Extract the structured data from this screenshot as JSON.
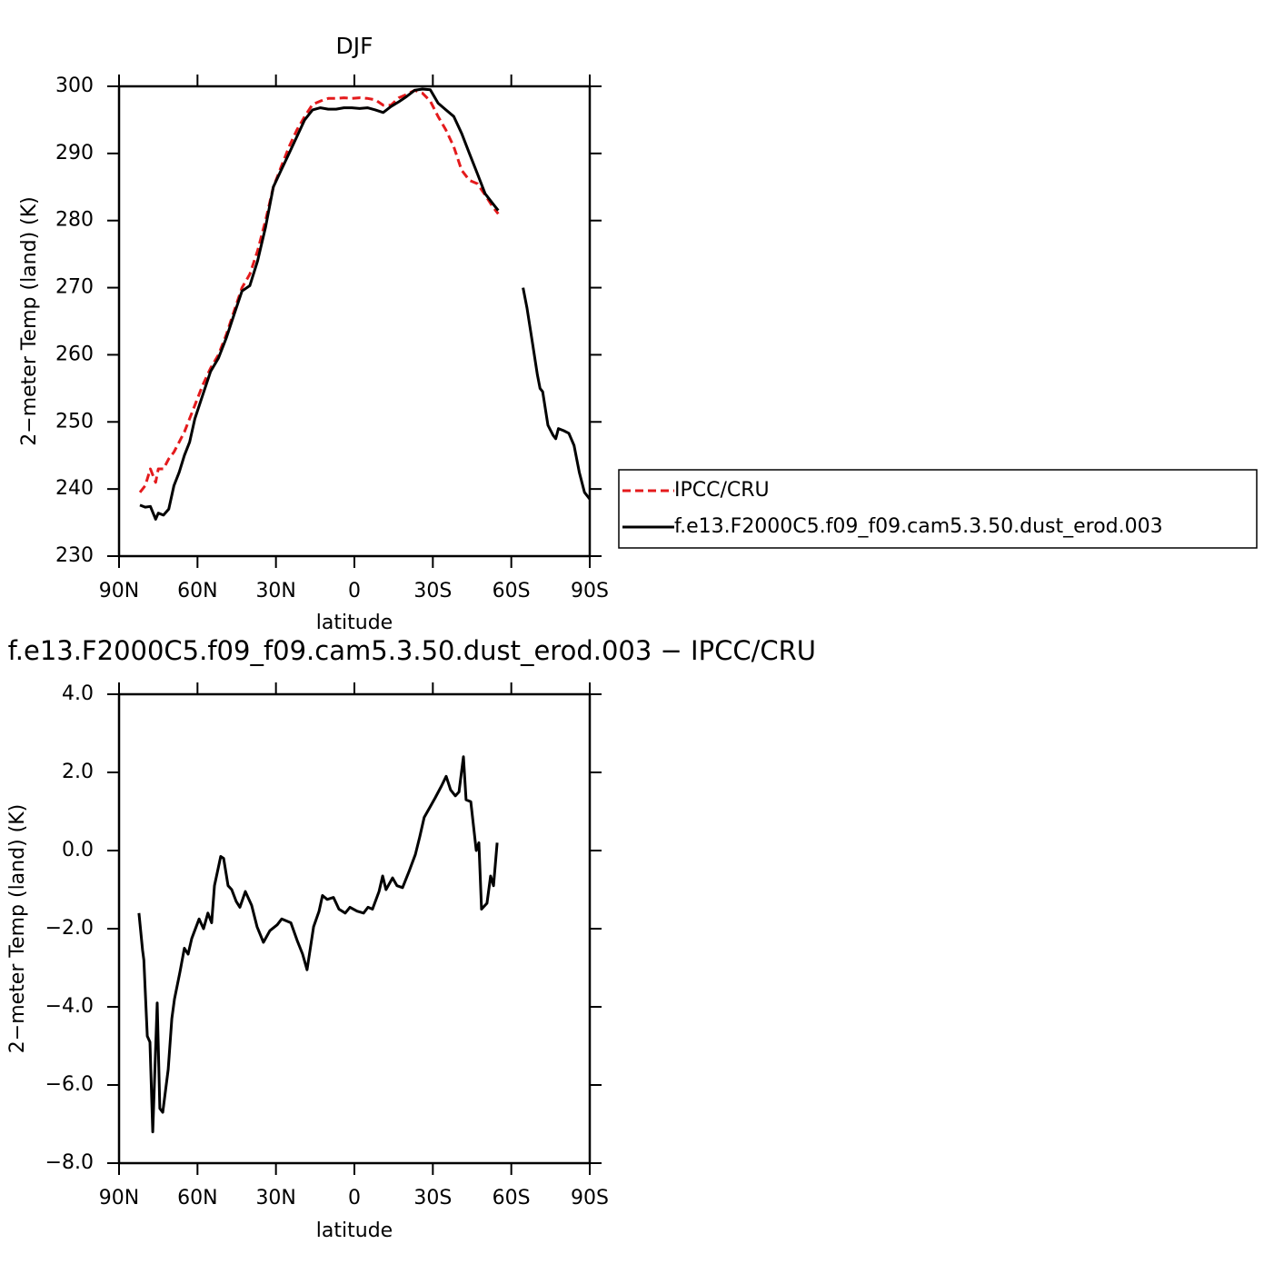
{
  "chart_data": [
    {
      "type": "line",
      "title": "DJF",
      "xlabel": "latitude",
      "ylabel": "2−meter Temp (land) (K)",
      "xlim": [
        90,
        -90
      ],
      "xticks": [
        {
          "value": 90,
          "label": "90N"
        },
        {
          "value": 60,
          "label": "60N"
        },
        {
          "value": 30,
          "label": "30N"
        },
        0,
        {
          "value": -30,
          "label": "30S"
        },
        {
          "value": -60,
          "label": "60S"
        },
        {
          "value": -90,
          "label": "90S"
        }
      ],
      "ylim": [
        230,
        300
      ],
      "yticks": [
        230,
        240,
        250,
        260,
        270,
        280,
        290,
        300
      ],
      "legend": "right",
      "x": [
        82,
        80,
        78,
        76,
        75,
        73,
        71,
        69,
        67,
        65,
        63,
        61,
        58,
        55,
        52,
        49,
        46,
        43,
        40,
        37,
        34,
        31,
        28,
        25,
        22,
        19,
        16,
        13,
        10,
        7,
        4,
        1,
        -2,
        -5,
        -8,
        -11,
        -14,
        -17,
        -20,
        -23,
        -26,
        -29,
        -32,
        -35,
        -38,
        -41,
        -44,
        -47,
        -50,
        -53,
        -55,
        -60,
        -64.5,
        -66,
        -68,
        -70,
        -71,
        -72,
        -74,
        -76,
        -77,
        -78,
        -80,
        -82,
        -84,
        -86,
        -88,
        -90
      ],
      "series": [
        {
          "name": "IPCC/CRU",
          "color": "#e41a1c",
          "dash": "dashed",
          "values": [
            239.5,
            240.5,
            243,
            241,
            243,
            243,
            244.5,
            245.5,
            247,
            248.5,
            250.5,
            252.5,
            255.5,
            258,
            260,
            263,
            266.5,
            270,
            272,
            275.5,
            280,
            285,
            288,
            291,
            293.5,
            295.5,
            297.3,
            297.8,
            298.2,
            298.2,
            298.3,
            298.2,
            298.3,
            298.2,
            298,
            297.2,
            297.2,
            298.3,
            298.8,
            299.4,
            299,
            297.8,
            295.5,
            293.5,
            291,
            287.5,
            286,
            285.5,
            283.8,
            282,
            281,
            null,
            null,
            null,
            null,
            null,
            null,
            null,
            null,
            null,
            null,
            null,
            null,
            null,
            null,
            null,
            null,
            null
          ]
        },
        {
          "name": "f.e13.F2000C5.f09_f09.cam5.3.50.dust_erod.003",
          "color": "#000000",
          "dash": "solid",
          "values": [
            237.6,
            237.3,
            237.4,
            235.5,
            236.4,
            236.1,
            237,
            240.5,
            242.5,
            245,
            247,
            250.5,
            254,
            257.5,
            259.5,
            262.5,
            266,
            269.5,
            270.3,
            274,
            279,
            285,
            287.5,
            290,
            292.5,
            295,
            296.5,
            296.8,
            296.6,
            296.6,
            296.8,
            296.8,
            296.7,
            296.8,
            296.5,
            296.1,
            297,
            297.7,
            298.5,
            299.4,
            299.6,
            299.5,
            297.5,
            296.5,
            295.5,
            293,
            290,
            287,
            284,
            282.5,
            281.5,
            null,
            270,
            267,
            262,
            257,
            255,
            254.5,
            249.5,
            248,
            247.5,
            249,
            248.7,
            248.3,
            246.5,
            242.5,
            239.5,
            238.5
          ]
        }
      ]
    },
    {
      "type": "line",
      "title": "f.e13.F2000C5.f09_f09.cam5.3.50.dust_erod.003 − IPCC/CRU",
      "xlabel": "latitude",
      "ylabel": "2−meter Temp (land) (K)",
      "xlim": [
        90,
        -90
      ],
      "xticks": [
        {
          "value": 90,
          "label": "90N"
        },
        {
          "value": 60,
          "label": "60N"
        },
        {
          "value": 30,
          "label": "30N"
        },
        0,
        {
          "value": -30,
          "label": "30S"
        },
        {
          "value": -60,
          "label": "60S"
        },
        {
          "value": -90,
          "label": "90S"
        }
      ],
      "ylim": [
        -8,
        4
      ],
      "yticks": [
        {
          "value": -8,
          "label": "−8.0"
        },
        {
          "value": -6,
          "label": "−6.0"
        },
        {
          "value": -4,
          "label": "−4.0"
        },
        {
          "value": -2,
          "label": "−2.0"
        },
        {
          "value": 0,
          "label": "0.0"
        },
        {
          "value": 2,
          "label": "2.0"
        },
        {
          "value": 4,
          "label": "4.0"
        }
      ],
      "color": "#000000",
      "x": [
        82.4,
        81,
        80.5,
        79.2,
        78.2,
        77.1,
        75.4,
        74.4,
        73.3,
        71.2,
        69.8,
        68.8,
        66.7,
        65,
        63.6,
        62.2,
        59.4,
        57.7,
        56,
        54.6,
        53.5,
        51.1,
        50,
        48.3,
        46.9,
        45.2,
        43.8,
        41.7,
        39.3,
        37.2,
        34.8,
        32.3,
        29.5,
        27.8,
        24.3,
        21.9,
        19.8,
        18.1,
        15.6,
        13.5,
        12.2,
        10.4,
        8,
        5.9,
        3.5,
        1.7,
        -1,
        -3.5,
        -5.2,
        -6.9,
        -9.4,
        -10.8,
        -12.1,
        -14.6,
        -16.3,
        -18.4,
        -20.8,
        -23.3,
        -25,
        -26.7,
        -28.8,
        -30.9,
        -33.3,
        -35.1,
        -36.8,
        -38.6,
        -40,
        -41.7,
        -42.7,
        -44.5,
        -46.6,
        -47.6,
        -48.6,
        -50.7,
        -52.1,
        -53.2,
        -54.6
      ],
      "values": [
        -1.6,
        -2.55,
        -2.8,
        -4.75,
        -4.9,
        -7.2,
        -3.9,
        -6.6,
        -6.7,
        -5.6,
        -4.3,
        -3.8,
        -3.1,
        -2.5,
        -2.65,
        -2.25,
        -1.75,
        -2.0,
        -1.6,
        -1.85,
        -0.9,
        -0.15,
        -0.2,
        -0.9,
        -1.0,
        -1.3,
        -1.45,
        -1.05,
        -1.4,
        -1.95,
        -2.35,
        -2.05,
        -1.9,
        -1.75,
        -1.85,
        -2.3,
        -2.65,
        -3.05,
        -1.95,
        -1.55,
        -1.15,
        -1.25,
        -1.2,
        -1.5,
        -1.6,
        -1.45,
        -1.55,
        -1.6,
        -1.45,
        -1.5,
        -1.05,
        -0.65,
        -1.0,
        -0.7,
        -0.9,
        -0.95,
        -0.55,
        -0.1,
        0.35,
        0.85,
        1.1,
        1.35,
        1.65,
        1.9,
        1.55,
        1.4,
        1.5,
        2.4,
        1.3,
        1.25,
        0.0,
        0.2,
        -1.5,
        -1.35,
        -0.65,
        -0.9,
        0.2
      ]
    }
  ]
}
